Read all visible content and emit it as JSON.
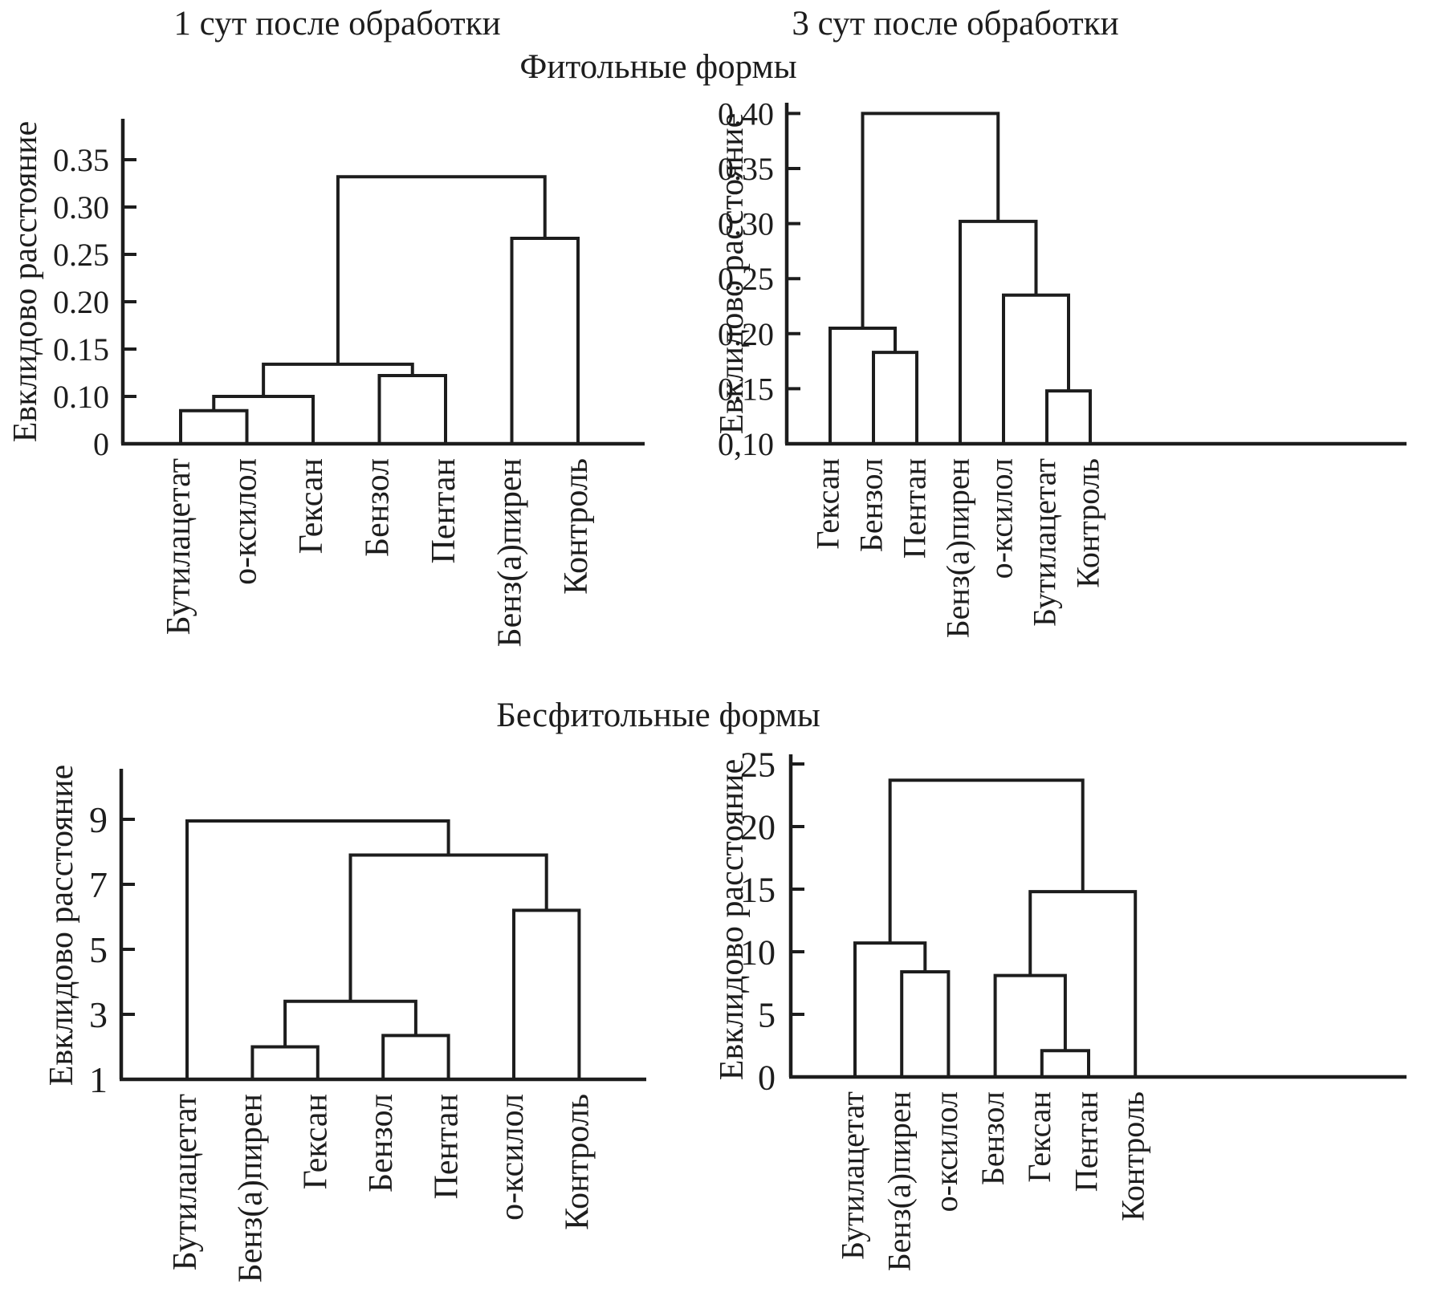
{
  "colors": {
    "background": "#ffffff",
    "line": "#1d1d1d"
  },
  "titles": {
    "column_1": "1 сут после обработки",
    "column_2": "3 сут после обработки",
    "group_top": "Фитольные формы",
    "group_bottom": "Бесфитольные формы"
  },
  "chart_data": [
    {
      "type": "dendrogram",
      "position": "top-left",
      "treatment": "1 сут после обработки",
      "form": "Фитольные формы",
      "ylabel": "Евклидово расстояние",
      "ylim": [
        0,
        0.385
      ],
      "grid": false,
      "y_scale_note": "segment 0–0.10 is drawn the same width as the 0.05 tick intervals",
      "yticks": [
        {
          "label": "0",
          "value": 0
        },
        {
          "label": "0.10",
          "value": 0.1
        },
        {
          "label": "0.15",
          "value": 0.15
        },
        {
          "label": "0.20",
          "value": 0.2
        },
        {
          "label": "0.25",
          "value": 0.25
        },
        {
          "label": "0.30",
          "value": 0.3
        },
        {
          "label": "0.35",
          "value": 0.35
        }
      ],
      "leaves": [
        "Бутилацетат",
        "о-ксилол",
        "Гексан",
        "Бензол",
        "Пентан",
        "Бенз(а)пирен",
        "Контроль"
      ],
      "merges": [
        {
          "a": "L0",
          "b": "L1",
          "h": 0.07
        },
        {
          "a": "M0",
          "b": "L2",
          "h": 0.1
        },
        {
          "a": "L3",
          "b": "L4",
          "h": 0.122
        },
        {
          "a": "M1",
          "b": "M2",
          "h": 0.134
        },
        {
          "a": "L5",
          "b": "L6",
          "h": 0.267
        },
        {
          "a": "M3",
          "b": "M4",
          "h": 0.332
        }
      ]
    },
    {
      "type": "dendrogram",
      "position": "top-right",
      "treatment": "3 сут после обработки",
      "form": "Фитольные формы",
      "ylabel": "Евклидово расстояние",
      "ylim": [
        0.1,
        0.415
      ],
      "grid": false,
      "yticks": [
        {
          "label": "0,10",
          "value": 0.1
        },
        {
          "label": "0.15",
          "value": 0.15
        },
        {
          "label": "0.20",
          "value": 0.2
        },
        {
          "label": "0.25",
          "value": 0.25
        },
        {
          "label": "0.30",
          "value": 0.3
        },
        {
          "label": "0.35",
          "value": 0.35
        },
        {
          "label": "0.40",
          "value": 0.4
        }
      ],
      "leaves": [
        "Гексан",
        "Бензол",
        "Пентан",
        "Бенз(а)пирен",
        "о-ксилол",
        "Бутилацетат",
        "Контроль"
      ],
      "merges": [
        {
          "a": "L1",
          "b": "L2",
          "h": 0.183
        },
        {
          "a": "L0",
          "b": "M0",
          "h": 0.205
        },
        {
          "a": "L5",
          "b": "L6",
          "h": 0.148
        },
        {
          "a": "L4",
          "b": "M2",
          "h": 0.235
        },
        {
          "a": "L3",
          "b": "M3",
          "h": 0.302
        },
        {
          "a": "M1",
          "b": "M4",
          "h": 0.4
        }
      ]
    },
    {
      "type": "dendrogram",
      "position": "bottom-left",
      "treatment": "1 сут после обработки",
      "form": "Бесфитольные формы",
      "ylabel": "Евклидово расстояние",
      "ylim": [
        1,
        10.8
      ],
      "grid": false,
      "yticks": [
        {
          "label": "1",
          "value": 1
        },
        {
          "label": "3",
          "value": 3
        },
        {
          "label": "5",
          "value": 5
        },
        {
          "label": "7",
          "value": 7
        },
        {
          "label": "9",
          "value": 9
        }
      ],
      "leaves": [
        "Бутилацетат",
        "Бенз(а)пирен",
        "Гексан",
        "Бензол",
        "Пентан",
        "о-ксилол",
        "Контроль"
      ],
      "merges": [
        {
          "a": "L1",
          "b": "L2",
          "h": 2.0
        },
        {
          "a": "L3",
          "b": "L4",
          "h": 2.35
        },
        {
          "a": "M0",
          "b": "M1",
          "h": 3.4
        },
        {
          "a": "L5",
          "b": "L6",
          "h": 6.2
        },
        {
          "a": "M2",
          "b": "M3",
          "h": 7.9
        },
        {
          "a": "L0",
          "b": "M4",
          "h": 8.95
        }
      ]
    },
    {
      "type": "dendrogram",
      "position": "bottom-right",
      "treatment": "3 сут после обработки",
      "form": "Бесфитольные формы",
      "ylabel": "Евклидово расстояние",
      "ylim": [
        0,
        25.8
      ],
      "grid": false,
      "yticks": [
        {
          "label": "0",
          "value": 0
        },
        {
          "label": "5",
          "value": 5
        },
        {
          "label": "10",
          "value": 10
        },
        {
          "label": "15",
          "value": 15
        },
        {
          "label": "20",
          "value": 20
        },
        {
          "label": "25",
          "value": 25
        }
      ],
      "leaves": [
        "Бутилацетат",
        "Бенз(а)пирен",
        "о-ксилол",
        "Бензол",
        "Гексан",
        "Пентан",
        "Контроль"
      ],
      "merges": [
        {
          "a": "L1",
          "b": "L2",
          "h": 8.4
        },
        {
          "a": "L0",
          "b": "M0",
          "h": 10.7
        },
        {
          "a": "L4",
          "b": "L5",
          "h": 2.1
        },
        {
          "a": "L3",
          "b": "M2",
          "h": 8.1
        },
        {
          "a": "M3",
          "b": "L6",
          "h": 14.8
        },
        {
          "a": "M1",
          "b": "M4",
          "h": 23.7
        }
      ]
    }
  ]
}
